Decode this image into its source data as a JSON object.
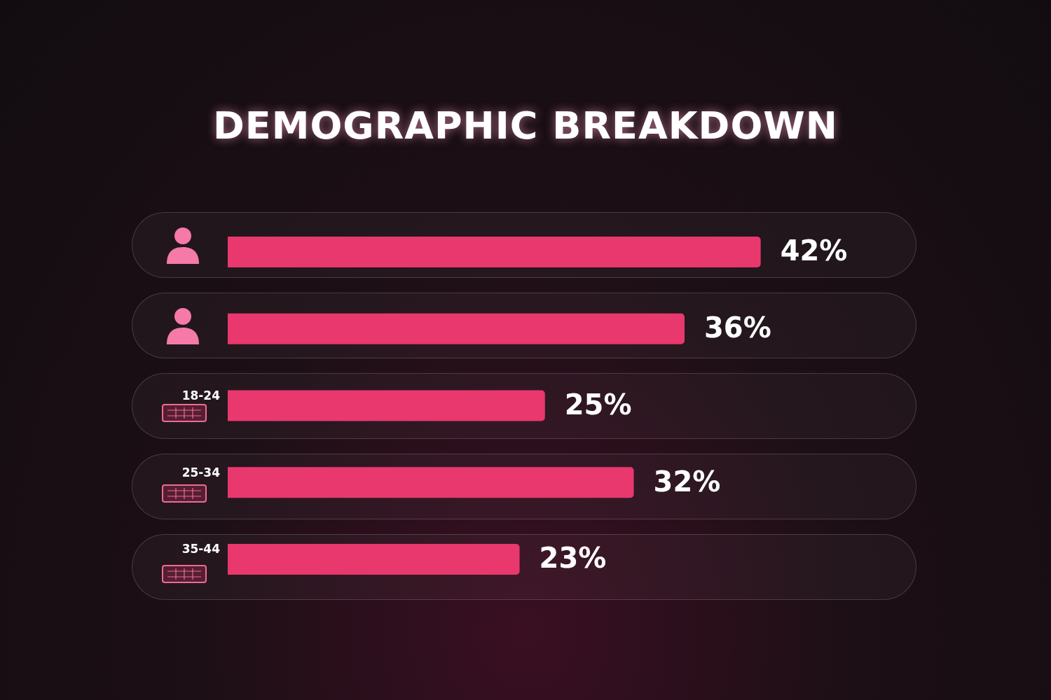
{
  "chart_data": {
    "type": "bar",
    "orientation": "horizontal",
    "title": "DEMOGRAPHIC BREAKDOWN",
    "categories": [
      null,
      null,
      "18-24",
      "25-34",
      "35-44"
    ],
    "values": [
      42,
      36,
      25,
      32,
      23
    ],
    "value_labels": [
      "42%",
      "36%",
      "25%",
      "32%",
      "23%"
    ],
    "color": "#e8386e"
  }
}
